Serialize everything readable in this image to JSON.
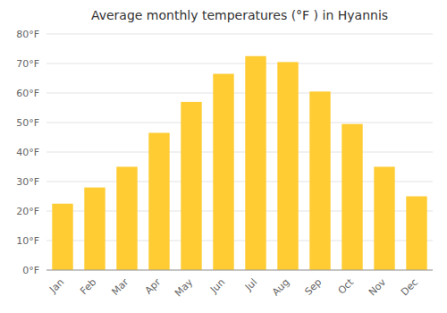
{
  "chart_data": {
    "type": "bar",
    "title": "Average monthly temperatures (°F ) in Hyannis",
    "categories": [
      "Jan",
      "Feb",
      "Mar",
      "Apr",
      "May",
      "Jun",
      "Jul",
      "Aug",
      "Sep",
      "Oct",
      "Nov",
      "Dec"
    ],
    "values": [
      22.5,
      28,
      35,
      46.5,
      57,
      66.5,
      72.5,
      70.5,
      60.5,
      49.5,
      35,
      25
    ],
    "color": "#ffcc33",
    "ylim": [
      0,
      80
    ],
    "yticks": [
      {
        "value": 0,
        "label": "0°F"
      },
      {
        "value": 10,
        "label": "10°F"
      },
      {
        "value": 20,
        "label": "20°F"
      },
      {
        "value": 30,
        "label": "30°F"
      },
      {
        "value": 40,
        "label": "40°F"
      },
      {
        "value": 50,
        "label": "50°F"
      },
      {
        "value": 60,
        "label": "60°F"
      },
      {
        "value": 70,
        "label": "70°F"
      },
      {
        "value": 80,
        "label": "80°F"
      }
    ],
    "grid": true
  }
}
